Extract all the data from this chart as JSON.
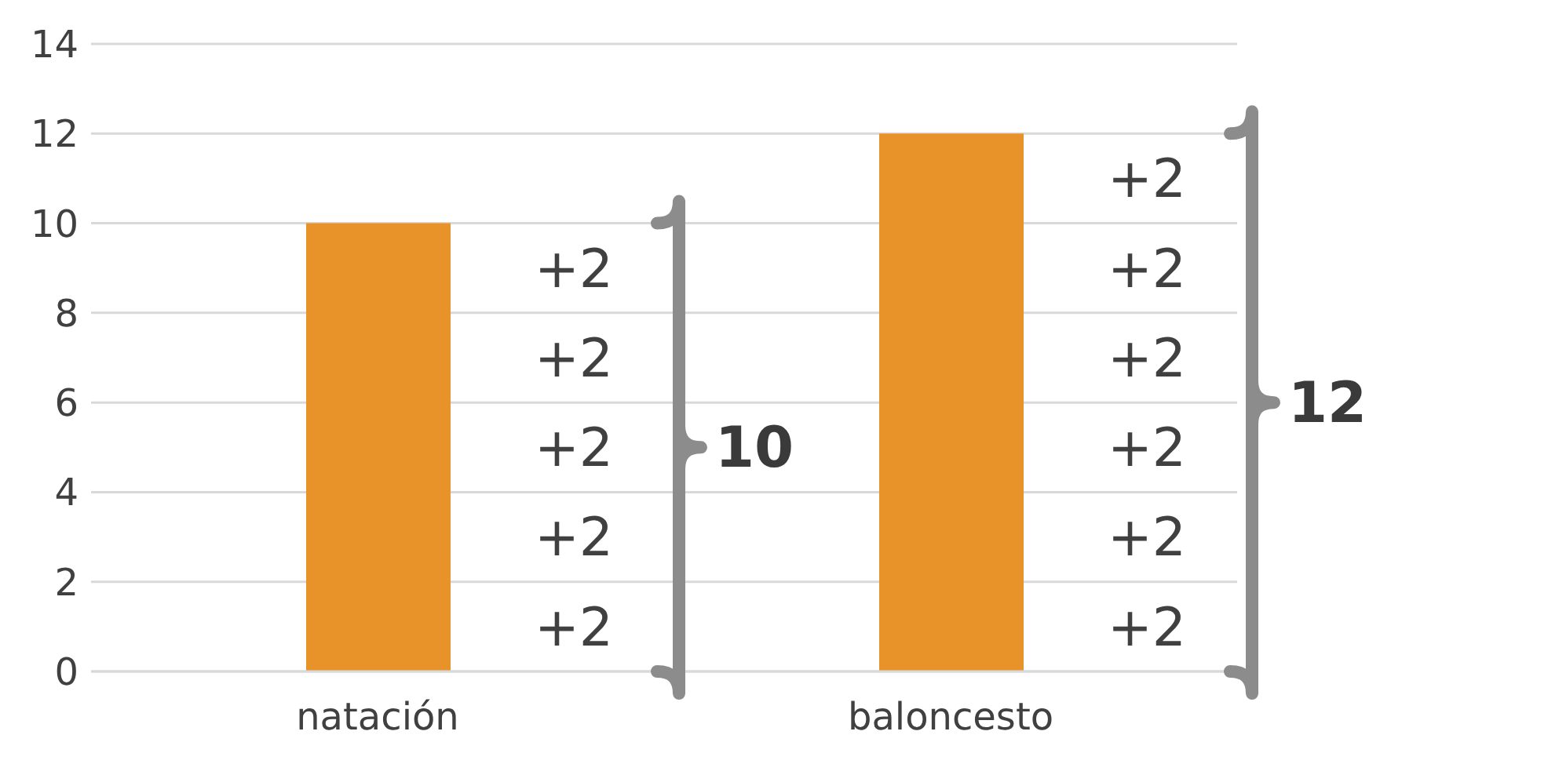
{
  "chart_data": {
    "type": "bar",
    "categories": [
      "natación",
      "baloncesto"
    ],
    "values": [
      10,
      12
    ],
    "color": "#e8922a",
    "ylim": [
      0,
      14
    ],
    "yticks": [
      0,
      2,
      4,
      6,
      8,
      10,
      12,
      14
    ],
    "grid": "y",
    "legend": false,
    "annotations": [
      "+2",
      "+2",
      "+2",
      "+2",
      "+2",
      "10",
      "+2",
      "+2",
      "+2",
      "+2",
      "+2",
      "+2",
      "12"
    ]
  }
}
